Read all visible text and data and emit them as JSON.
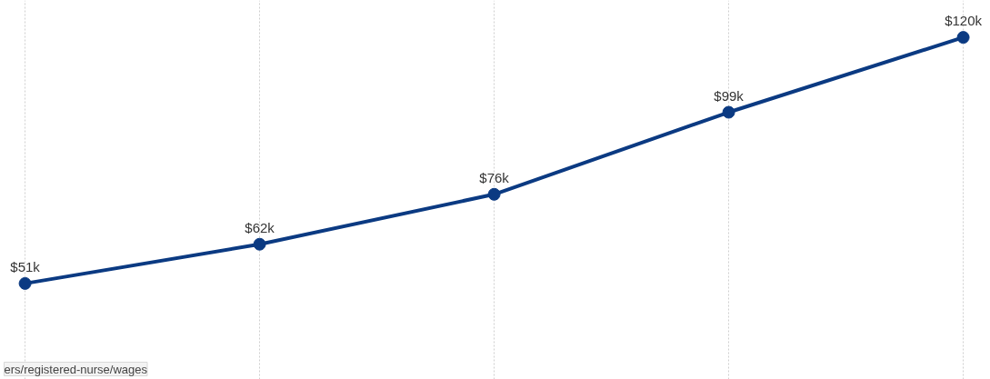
{
  "chart_data": {
    "type": "line",
    "categories": [
      null,
      null,
      null,
      null,
      null
    ],
    "series": [
      {
        "color": "#0b3a82",
        "values": [
          51,
          62,
          76,
          99,
          120
        ],
        "value_labels": [
          "$51k",
          "$62k",
          "$76k",
          "$99k",
          "$120k"
        ]
      }
    ],
    "marker": "circle",
    "line_style": "solid",
    "grid": "x",
    "tick_labels": false,
    "annotations": [
      "ers/registered-nurse/wages"
    ]
  }
}
